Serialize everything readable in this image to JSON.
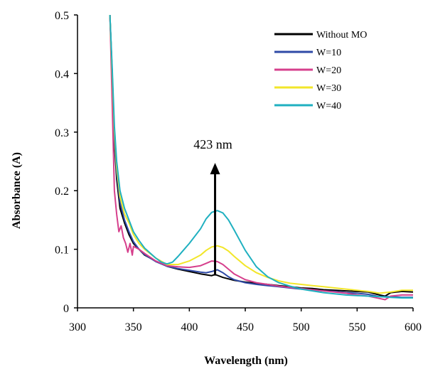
{
  "chart_data": {
    "type": "line",
    "xlabel": "Wavelength (nm)",
    "ylabel": "Absorbance (A)",
    "xlim": [
      300,
      600
    ],
    "ylim": [
      0,
      0.5
    ],
    "xticks": [
      "300",
      "350",
      "400",
      "450",
      "500",
      "550",
      "600"
    ],
    "yticks": [
      "0",
      "0.1",
      "0.2",
      "0.3",
      "0.4",
      "0.5"
    ],
    "grid": false,
    "legend_position": "top-right",
    "annotation": {
      "text": "423 nm",
      "x": 423,
      "y_from": 0.055,
      "y_to": 0.245
    },
    "series": [
      {
        "name": "Without MO",
        "color": "#000000",
        "x": [
          329,
          331,
          333,
          335,
          338,
          342,
          346,
          350,
          355,
          360,
          370,
          380,
          390,
          400,
          410,
          420,
          423,
          430,
          440,
          450,
          460,
          470,
          480,
          490,
          500,
          510,
          520,
          530,
          540,
          550,
          560,
          570,
          575,
          580,
          590,
          600
        ],
        "y": [
          0.5,
          0.4,
          0.28,
          0.22,
          0.17,
          0.145,
          0.125,
          0.11,
          0.1,
          0.09,
          0.08,
          0.071,
          0.066,
          0.062,
          0.058,
          0.055,
          0.057,
          0.052,
          0.047,
          0.044,
          0.042,
          0.04,
          0.038,
          0.036,
          0.034,
          0.033,
          0.031,
          0.03,
          0.029,
          0.028,
          0.027,
          0.022,
          0.02,
          0.026,
          0.028,
          0.027
        ]
      },
      {
        "name": "W=10",
        "color": "#2f4aa6",
        "x": [
          329,
          331,
          333,
          335,
          338,
          342,
          346,
          350,
          355,
          360,
          370,
          380,
          390,
          400,
          410,
          415,
          420,
          425,
          430,
          435,
          440,
          450,
          460,
          470,
          480,
          490,
          500,
          510,
          520,
          530,
          540,
          550,
          560,
          570,
          580,
          590,
          600
        ],
        "y": [
          0.5,
          0.4,
          0.29,
          0.23,
          0.18,
          0.15,
          0.13,
          0.113,
          0.1,
          0.091,
          0.079,
          0.071,
          0.067,
          0.064,
          0.061,
          0.06,
          0.062,
          0.065,
          0.06,
          0.053,
          0.048,
          0.043,
          0.04,
          0.038,
          0.036,
          0.034,
          0.032,
          0.031,
          0.029,
          0.028,
          0.026,
          0.025,
          0.023,
          0.019,
          0.019,
          0.018,
          0.018
        ]
      },
      {
        "name": "W=20",
        "color": "#d63f8c",
        "x": [
          329,
          331,
          333,
          335,
          337,
          339,
          341,
          343,
          345,
          347,
          349,
          350,
          355,
          360,
          370,
          380,
          390,
          400,
          410,
          415,
          420,
          425,
          430,
          435,
          440,
          450,
          460,
          470,
          480,
          490,
          500,
          510,
          520,
          530,
          540,
          550,
          560,
          570,
          575,
          580,
          590,
          600
        ],
        "y": [
          0.5,
          0.35,
          0.2,
          0.16,
          0.13,
          0.14,
          0.12,
          0.11,
          0.095,
          0.11,
          0.09,
          0.105,
          0.1,
          0.093,
          0.08,
          0.072,
          0.07,
          0.069,
          0.072,
          0.076,
          0.08,
          0.079,
          0.074,
          0.066,
          0.058,
          0.048,
          0.043,
          0.04,
          0.037,
          0.035,
          0.033,
          0.031,
          0.029,
          0.027,
          0.025,
          0.022,
          0.02,
          0.016,
          0.014,
          0.02,
          0.022,
          0.022
        ]
      },
      {
        "name": "W=30",
        "color": "#f2e62a",
        "x": [
          329,
          331,
          333,
          335,
          338,
          342,
          346,
          350,
          355,
          360,
          370,
          380,
          390,
          400,
          410,
          415,
          420,
          425,
          430,
          435,
          440,
          450,
          460,
          470,
          480,
          490,
          500,
          510,
          520,
          530,
          540,
          550,
          560,
          570,
          580,
          590,
          600
        ],
        "y": [
          0.5,
          0.4,
          0.3,
          0.24,
          0.19,
          0.16,
          0.145,
          0.125,
          0.11,
          0.1,
          0.085,
          0.074,
          0.074,
          0.08,
          0.09,
          0.098,
          0.104,
          0.106,
          0.103,
          0.097,
          0.088,
          0.072,
          0.06,
          0.052,
          0.046,
          0.042,
          0.04,
          0.038,
          0.036,
          0.034,
          0.032,
          0.03,
          0.028,
          0.025,
          0.027,
          0.03,
          0.03
        ]
      },
      {
        "name": "W=40",
        "color": "#1fb0c0",
        "x": [
          329,
          331,
          333,
          335,
          338,
          342,
          346,
          350,
          355,
          360,
          370,
          375,
          380,
          385,
          390,
          400,
          410,
          415,
          420,
          425,
          430,
          435,
          440,
          450,
          460,
          470,
          480,
          490,
          500,
          510,
          520,
          530,
          540,
          550,
          560,
          570,
          580,
          590,
          600
        ],
        "y": [
          0.5,
          0.41,
          0.31,
          0.25,
          0.2,
          0.17,
          0.15,
          0.13,
          0.115,
          0.102,
          0.085,
          0.078,
          0.075,
          0.078,
          0.088,
          0.11,
          0.135,
          0.152,
          0.163,
          0.166,
          0.162,
          0.15,
          0.133,
          0.098,
          0.07,
          0.053,
          0.043,
          0.037,
          0.032,
          0.029,
          0.026,
          0.024,
          0.022,
          0.021,
          0.02,
          0.019,
          0.018,
          0.017,
          0.017
        ]
      }
    ]
  }
}
